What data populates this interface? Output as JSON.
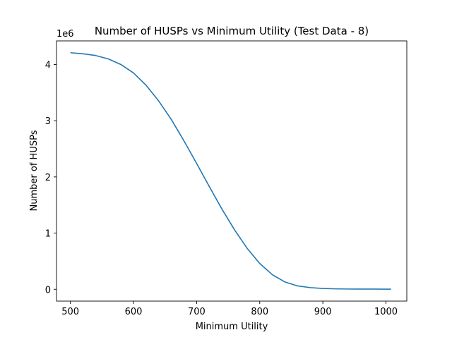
{
  "chart_data": {
    "type": "line",
    "title": "Number of HUSPs vs Minimum Utility (Test Data - 8)",
    "xlabel": "Minimum Utility",
    "ylabel": "Number of HUSPs",
    "y_offset_label": "1e6",
    "xlim": [
      478,
      1033
    ],
    "ylim": [
      -0.21,
      4.42
    ],
    "xticks": [
      500,
      600,
      700,
      800,
      900,
      1000
    ],
    "yticks": [
      0,
      1,
      2,
      3,
      4
    ],
    "grid": false,
    "legend": "none",
    "series": [
      {
        "color": "#1f77b4",
        "x": [
          500,
          520,
          540,
          560,
          580,
          600,
          620,
          640,
          660,
          680,
          700,
          720,
          740,
          760,
          780,
          800,
          820,
          840,
          860,
          880,
          900,
          920,
          940,
          960,
          980,
          1000,
          1008
        ],
        "y": [
          4.21,
          4.19,
          4.16,
          4.1,
          4.0,
          3.85,
          3.63,
          3.35,
          3.02,
          2.64,
          2.24,
          1.83,
          1.43,
          1.06,
          0.73,
          0.46,
          0.26,
          0.13,
          0.06,
          0.03,
          0.015,
          0.008,
          0.005,
          0.004,
          0.004,
          0.003,
          0.003
        ]
      }
    ]
  }
}
